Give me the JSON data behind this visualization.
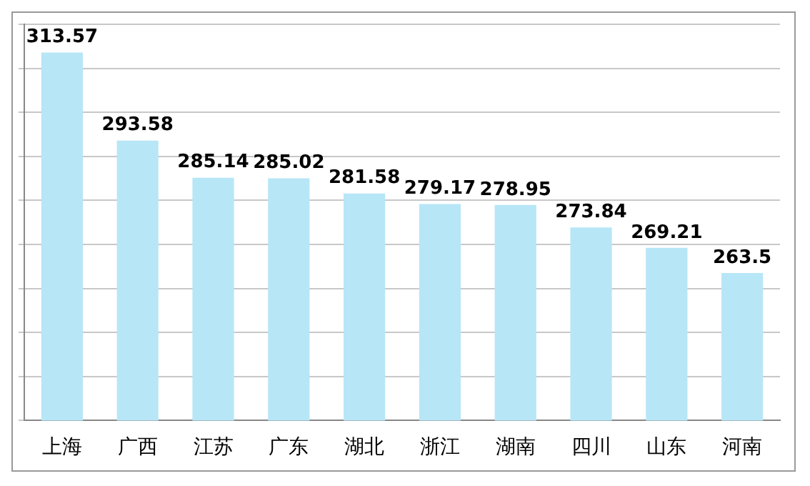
{
  "chart_data": {
    "type": "bar",
    "categories": [
      "上海",
      "广西",
      "江苏",
      "广东",
      "湖北",
      "浙江",
      "湖南",
      "四川",
      "山东",
      "河南"
    ],
    "values": [
      313.57,
      293.58,
      285.14,
      285.02,
      281.58,
      279.17,
      278.95,
      273.84,
      269.21,
      263.5
    ],
    "color": "#b7e6f7",
    "data_labels": true,
    "grid": "y",
    "tick_labels": "x",
    "ylim": [
      230,
      320
    ],
    "yticks": [
      {
        "value": 230,
        "label": null
      },
      {
        "value": 240,
        "label": null
      },
      {
        "value": 250,
        "label": null
      },
      {
        "value": 260,
        "label": null
      },
      {
        "value": 270,
        "label": null
      },
      {
        "value": 280,
        "label": null
      },
      {
        "value": 290,
        "label": null
      },
      {
        "value": 300,
        "label": null
      },
      {
        "value": 310,
        "label": null
      },
      {
        "value": 320,
        "label": null
      }
    ]
  }
}
